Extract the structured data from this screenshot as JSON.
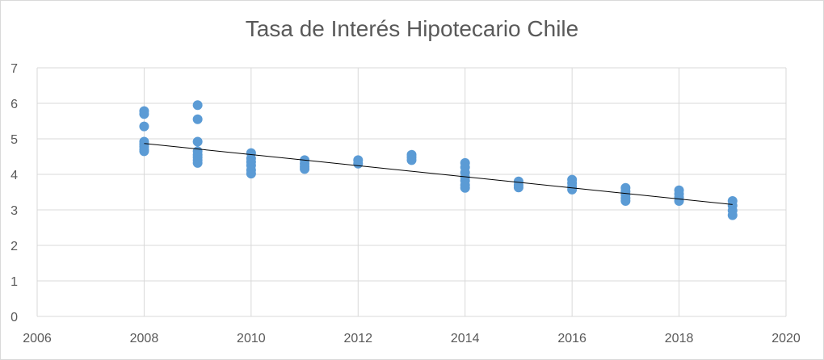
{
  "chart_data": {
    "type": "scatter",
    "title": "Tasa de Interés Hipotecario Chile",
    "xlim": [
      2006,
      2020
    ],
    "ylim": [
      0,
      7
    ],
    "xticks": [
      2006,
      2008,
      2010,
      2012,
      2014,
      2016,
      2018,
      2020
    ],
    "yticks": [
      0,
      1,
      2,
      3,
      4,
      5,
      6,
      7
    ],
    "grid": true,
    "legend": "none",
    "colors": {
      "points": "#5b9bd5",
      "trendline": "#000000",
      "grid": "#d9d9d9"
    },
    "points": [
      {
        "x": 2008,
        "y": 5.78
      },
      {
        "x": 2008,
        "y": 5.7
      },
      {
        "x": 2008,
        "y": 5.35
      },
      {
        "x": 2008,
        "y": 4.92
      },
      {
        "x": 2008,
        "y": 4.85
      },
      {
        "x": 2008,
        "y": 4.78
      },
      {
        "x": 2008,
        "y": 4.7
      },
      {
        "x": 2008,
        "y": 4.65
      },
      {
        "x": 2009,
        "y": 5.95
      },
      {
        "x": 2009,
        "y": 5.55
      },
      {
        "x": 2009,
        "y": 4.92
      },
      {
        "x": 2009,
        "y": 4.65
      },
      {
        "x": 2009,
        "y": 4.55
      },
      {
        "x": 2009,
        "y": 4.48
      },
      {
        "x": 2009,
        "y": 4.4
      },
      {
        "x": 2009,
        "y": 4.32
      },
      {
        "x": 2010,
        "y": 4.6
      },
      {
        "x": 2010,
        "y": 4.45
      },
      {
        "x": 2010,
        "y": 4.35
      },
      {
        "x": 2010,
        "y": 4.25
      },
      {
        "x": 2010,
        "y": 4.12
      },
      {
        "x": 2010,
        "y": 4.02
      },
      {
        "x": 2011,
        "y": 4.4
      },
      {
        "x": 2011,
        "y": 4.3
      },
      {
        "x": 2011,
        "y": 4.22
      },
      {
        "x": 2011,
        "y": 4.15
      },
      {
        "x": 2012,
        "y": 4.4
      },
      {
        "x": 2012,
        "y": 4.3
      },
      {
        "x": 2013,
        "y": 4.55
      },
      {
        "x": 2013,
        "y": 4.48
      },
      {
        "x": 2013,
        "y": 4.4
      },
      {
        "x": 2014,
        "y": 4.32
      },
      {
        "x": 2014,
        "y": 4.2
      },
      {
        "x": 2014,
        "y": 4.05
      },
      {
        "x": 2014,
        "y": 3.92
      },
      {
        "x": 2014,
        "y": 3.82
      },
      {
        "x": 2014,
        "y": 3.7
      },
      {
        "x": 2014,
        "y": 3.62
      },
      {
        "x": 2015,
        "y": 3.8
      },
      {
        "x": 2015,
        "y": 3.7
      },
      {
        "x": 2015,
        "y": 3.63
      },
      {
        "x": 2016,
        "y": 3.85
      },
      {
        "x": 2016,
        "y": 3.75
      },
      {
        "x": 2016,
        "y": 3.65
      },
      {
        "x": 2016,
        "y": 3.57
      },
      {
        "x": 2017,
        "y": 3.62
      },
      {
        "x": 2017,
        "y": 3.52
      },
      {
        "x": 2017,
        "y": 3.42
      },
      {
        "x": 2017,
        "y": 3.33
      },
      {
        "x": 2017,
        "y": 3.25
      },
      {
        "x": 2018,
        "y": 3.55
      },
      {
        "x": 2018,
        "y": 3.45
      },
      {
        "x": 2018,
        "y": 3.35
      },
      {
        "x": 2018,
        "y": 3.25
      },
      {
        "x": 2019,
        "y": 3.25
      },
      {
        "x": 2019,
        "y": 3.12
      },
      {
        "x": 2019,
        "y": 2.98
      },
      {
        "x": 2019,
        "y": 2.85
      }
    ],
    "trendline": {
      "type": "linear",
      "from": {
        "x": 2008,
        "y": 4.87
      },
      "to": {
        "x": 2019,
        "y": 3.15
      }
    }
  }
}
